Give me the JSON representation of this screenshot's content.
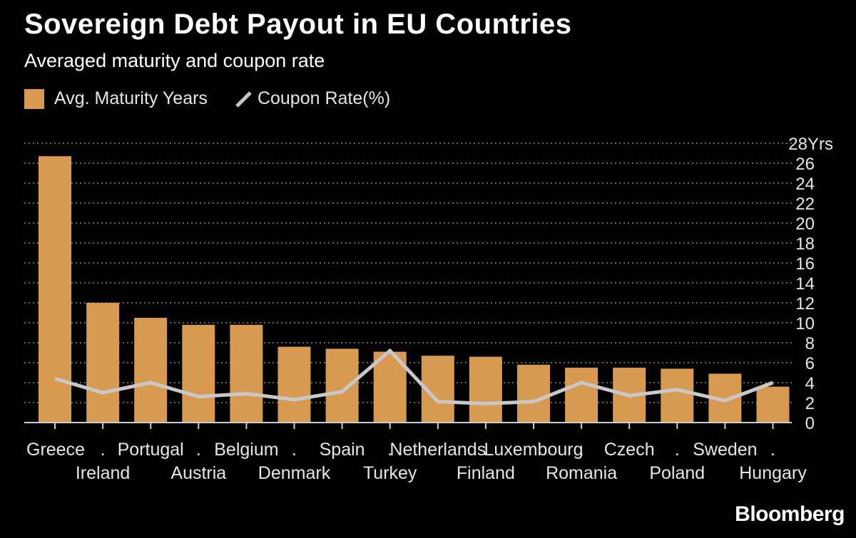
{
  "header": {
    "title": "Sovereign Debt Payout in EU Countries",
    "subtitle": "Averaged maturity and coupon rate"
  },
  "legend": {
    "bars_label": "Avg. Maturity Years",
    "line_label": "Coupon Rate(%)"
  },
  "colors": {
    "bar": "#d89a50",
    "line": "#c8c8c8",
    "grid": "#8a8a8a",
    "text": "#e6e6e6"
  },
  "brand": "Bloomberg",
  "chart_data": {
    "type": "bar",
    "title": "Sovereign Debt Payout in EU Countries",
    "subtitle": "Averaged maturity and coupon rate",
    "categories": [
      "Greece",
      "Ireland",
      "Portugal",
      "Austria",
      "Belgium",
      "Denmark",
      "Spain",
      "Turkey",
      "Netherlands",
      "Finland",
      "Luxembourg",
      "Romania",
      "Czech",
      "Poland",
      "Sweden",
      "Hungary"
    ],
    "label_rows": {
      "top": [
        "Greece",
        ".",
        "Portugal",
        ".",
        "Belgium",
        ".",
        "Spain",
        ".",
        "Netherlands",
        ".",
        "Luxembourg",
        ".",
        "Czech",
        ".",
        "Sweden",
        "."
      ],
      "bottom": [
        "",
        "Ireland",
        "",
        "Austria",
        "",
        "Denmark",
        "",
        "Turkey",
        "",
        "Finland",
        "",
        "Romania",
        "",
        "Poland",
        "",
        "Hungary"
      ]
    },
    "series": [
      {
        "name": "Avg. Maturity Years",
        "type": "bar",
        "values": [
          26.7,
          12.0,
          10.5,
          9.8,
          9.8,
          7.6,
          7.4,
          7.1,
          6.7,
          6.6,
          5.8,
          5.5,
          5.5,
          5.4,
          4.9,
          3.6
        ]
      },
      {
        "name": "Coupon Rate(%)",
        "type": "line",
        "values": [
          4.4,
          3.0,
          4.0,
          2.6,
          2.9,
          2.3,
          3.1,
          7.2,
          2.1,
          1.9,
          2.1,
          4.0,
          2.7,
          3.3,
          2.2,
          4.0
        ]
      }
    ],
    "y_ticks": [
      0,
      2,
      4,
      6,
      8,
      10,
      12,
      14,
      16,
      18,
      20,
      22,
      24,
      26
    ],
    "y_top_label": "28Yrs",
    "ylim": [
      0,
      28
    ],
    "grid": true,
    "legend_position": "top-left"
  }
}
